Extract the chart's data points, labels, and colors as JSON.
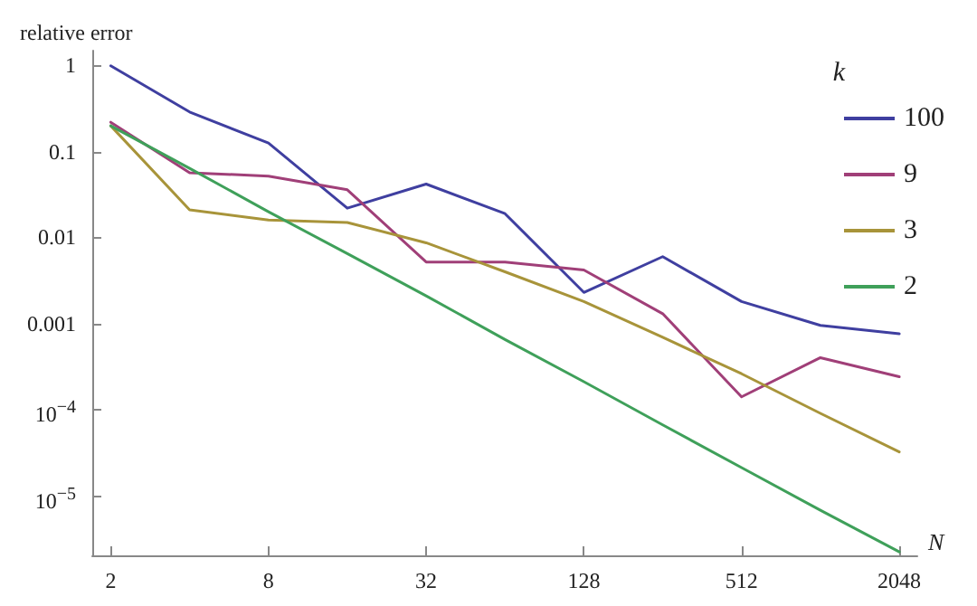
{
  "chart_data": {
    "type": "line",
    "xlabel": "N",
    "ylabel": "relative error",
    "legend_title": "k",
    "legend": "top right",
    "grid": false,
    "marker": "none",
    "line_style": "solid",
    "log": "xy",
    "x": [
      2,
      4,
      8,
      16,
      32,
      64,
      128,
      256,
      512,
      1024,
      2048
    ],
    "xlim": [
      1.7,
      2400
    ],
    "xticks": [
      2,
      8,
      32,
      128,
      512,
      2048
    ],
    "ylim": [
      2e-06,
      1.5
    ],
    "yticks": [
      1,
      0.1,
      0.01,
      0.001,
      {
        "value": 0.0001,
        "label": "10$^{−4}$"
      },
      {
        "value": 1e-05,
        "label": "10$^{−5}$"
      }
    ],
    "series": [
      {
        "name": "100",
        "color": "#3f3fa0",
        "values": [
          1,
          0.29,
          0.126,
          0.022,
          0.042,
          0.019,
          0.0023,
          0.006,
          0.0018,
          0.00095,
          0.00076
        ]
      },
      {
        "name": "9",
        "color": "#a03f78",
        "values": [
          0.22,
          0.057,
          0.052,
          0.036,
          0.0052,
          0.0052,
          0.0042,
          0.0013,
          0.00014,
          0.0004,
          0.00024
        ]
      },
      {
        "name": "3",
        "color": "#a8943a",
        "values": [
          0.2,
          0.021,
          0.016,
          0.015,
          0.0087,
          0.004,
          0.0018,
          0.00069,
          0.00026,
          9e-05,
          3.2e-05
        ]
      },
      {
        "name": "2",
        "color": "#3fa05a",
        "values": [
          0.2,
          0.064,
          0.02,
          0.0065,
          0.0021,
          0.00065,
          0.00021,
          6.6e-05,
          2.1e-05,
          6.7e-06,
          2.2e-06
        ]
      }
    ]
  }
}
